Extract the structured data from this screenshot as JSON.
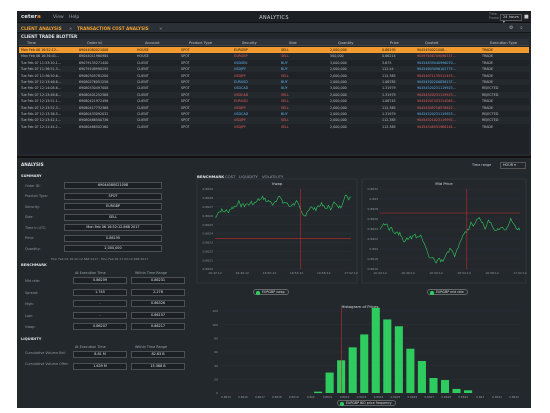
{
  "app": {
    "brand_a": "ceter",
    "brand_b": "a",
    "title": "ANALYTICS",
    "menus": [
      "View",
      "Help"
    ],
    "tz_label": "Time Frame",
    "hours": "24 hours"
  },
  "tabs": [
    "CLIENT ANALYSIS",
    "TRANSACTION COST ANALYSIS"
  ],
  "blotter": {
    "title": "CLIENT TRADE BLOTTER",
    "columns": [
      "Time",
      "Order Id",
      "Account",
      "Product Type",
      "Security",
      "Side",
      "Quantity",
      "Price",
      "Quotelt",
      "Execution Type"
    ],
    "rows": [
      [
        "Mon Feb 06 16:52:12...",
        "69044080021008",
        "HOUSE",
        "SPOT",
        "EURGBP",
        "SELL",
        "2,000,000",
        "0.86195",
        "9045450021008...",
        "TRADE"
      ],
      [
        "Mon Feb 06 16:36:41...",
        "69044011960984",
        "HOUSE",
        "SPOT",
        "EURGBP",
        "SELL",
        "500,000",
        "0.86214",
        "90497636709096747...",
        "TRADE"
      ],
      [
        "Tue Feb 07 11:33:20.1...",
        "69079135271440",
        "CLIENT",
        "SPOT",
        "USDSEK",
        "BUY",
        "3,000,000",
        "3.675",
        "90454839040996070...",
        "TRADE"
      ],
      [
        "Tue Feb 07 11:36:51.3...",
        "69079108990295",
        "CLIENT",
        "SPOT",
        "USDJPY",
        "BUY",
        "2,000,000",
        "112.44",
        "90454603096102775...",
        "TRADE"
      ],
      [
        "Tue Feb 07 11:36:50.6...",
        "69080305781200",
        "CLIENT",
        "SPOT",
        "USDJPY",
        "SELL",
        "2,000,000",
        "112.385",
        "90454971135511453...",
        "TRADE"
      ],
      [
        "Tue Feb 07 12:13:46.6...",
        "69080276051256",
        "CLIENT",
        "SPOT",
        "EURUSD",
        "BUY",
        "2,000,000",
        "1.06785",
        "90454502200836137...",
        "TRADE"
      ],
      [
        "Tue Feb 07 12:14:08.6...",
        "69080330497008",
        "CLIENT",
        "SPOT",
        "USDCAD",
        "BUY",
        "3,000,000",
        "1.31979",
        "90454520231119923...",
        "REJECTED"
      ],
      [
        "Tue Feb 07 12:13:46.6...",
        "69080401252368",
        "CLIENT",
        "SPOT",
        "USDCAD",
        "SELL",
        "2,000,000",
        "1.31979",
        "90454520231119923...",
        "REJECTED"
      ],
      [
        "Tue Feb 07 12:13:51.1...",
        "69080421972496",
        "CLIENT",
        "SPOT",
        "EURUSD",
        "SELL",
        "2,000,000",
        "1.06745",
        "90454507433314063...",
        "TRADE"
      ],
      [
        "Tue Feb 07 12:13:52.3...",
        "69080417732368",
        "CLIENT",
        "SPOT",
        "USDJPY",
        "SELL",
        "2,000,000",
        "112.385",
        "90454309716578822...",
        "TRADE"
      ],
      [
        "Tue Feb 07 12:13:36.5...",
        "69080433092032",
        "CLIENT",
        "SPOT",
        "USDCAD",
        "BUY",
        "2,000,000",
        "1.31979",
        "90454520231119923...",
        "REJECTED"
      ],
      [
        "Tue Feb 07 12:13:42.1...",
        "69080466500736",
        "CLIENT",
        "SPOT",
        "USDJPY",
        "SELL",
        "2,000,000",
        "112.385",
        "90454521023119992...",
        "REJECTED"
      ],
      [
        "Tue Feb 07 12:11:44.2...",
        "69080466502160",
        "CLIENT",
        "SPOT",
        "USDJPY",
        "SELL",
        "2,000,000",
        "112.385",
        "90454548591966144...",
        "TRADE"
      ]
    ]
  },
  "analysis": {
    "title": "ANALYSIS",
    "time_range_label": "Time range",
    "time_range": "HOUR",
    "summary_title": "SUMMARY",
    "summary": [
      {
        "label": "Order ID:",
        "value": "69044080021008"
      },
      {
        "label": "Product Type:",
        "value": "SPOT"
      },
      {
        "label": "Security:",
        "value": "EURGBP"
      },
      {
        "label": "Side:",
        "value": "SELL"
      },
      {
        "label": "Time in UTC:",
        "value": "Mon Feb 06 16:52:12.868 2017"
      },
      {
        "label": "Price:",
        "value": "0.86195"
      },
      {
        "label": "Quantity:",
        "value": "2,000,000"
      }
    ],
    "window_text": "Mon Feb 06 16:42:12.868 2017 - Mon Feb 06 17:02:12.868 2017",
    "benchmark_title": "BENCHMARK",
    "bench_cols": [
      "At Execution Time",
      "Within Time Range"
    ],
    "benchmark": [
      {
        "label": "Mid rate:",
        "a": "0.86209",
        "b": "0.86231"
      },
      {
        "label": "Spread:",
        "a": "1.745",
        "b": "2.276"
      },
      {
        "label": "High:",
        "a": "-",
        "b": "0.86326"
      },
      {
        "label": "Low:",
        "a": "-",
        "b": "0.86157"
      },
      {
        "label": "Vwap:",
        "a": "0.86207",
        "b": "0.86217"
      }
    ],
    "liquidity_title": "LIQUIDITY",
    "liq_cols": [
      "At Execution Time",
      "Within Time Range"
    ],
    "liquidity": [
      {
        "label": "Cumulative Volume Bid:",
        "a": "8.81 M",
        "b": "82.63 B"
      },
      {
        "label": "Cumulative Volume Offer:",
        "a": "1.639 M",
        "b": "15.368 B"
      }
    ]
  },
  "right_tabs": [
    "BENCHMARK",
    "COST",
    "LIQUIDITY",
    "VOLATILITY"
  ],
  "charts": {
    "vwap": {
      "title": "Vwap",
      "legend": "EURGBP vwap",
      "yticks": [
        "0.8629",
        "0.8628",
        "0.8627",
        "0.8626",
        "0.8625",
        "0.8624",
        "0.8623",
        "0.8622",
        "0.8621",
        "0.8620"
      ],
      "xticks": [
        "16:42:12",
        "16:46:12",
        "16:50:12",
        "16:54:12",
        "16:58:12",
        "17:02:12"
      ]
    },
    "mid": {
      "title": "Mid Price",
      "legend": "EURGBP mid rate",
      "yticks": [
        "0.8632",
        "0.863",
        "0.8628",
        "0.8626",
        "0.8624",
        "0.8622",
        "0.862",
        "0.8618",
        "0.8616"
      ],
      "xticks": [
        "16:42:12",
        "16:46:12",
        "16:50:12",
        "16:54:12",
        "16:58:12",
        "17:02:12"
      ]
    },
    "hist": {
      "title": "Histogram of Prices",
      "legend": "EURGBP BID price frequency",
      "yticks": [
        "120",
        "100",
        "80",
        "60",
        "40",
        "20",
        "0"
      ],
      "xticks": [
        "0.8615",
        "0.8616",
        "0.8617",
        "0.8618",
        "0.8619",
        "0.862",
        "0.8621",
        "0.8622",
        "0.8623",
        "0.8624",
        "0.8625",
        "0.8626",
        "0.8627",
        "0.8628",
        "0.8629",
        "0.863",
        "0.8631",
        "0.8632"
      ]
    }
  },
  "chart_data": {
    "type": "bar",
    "title": "Histogram of Prices",
    "series": [
      {
        "name": "EURGBP BID price frequency",
        "values": [
          0,
          0,
          0,
          0,
          0,
          0,
          0,
          0,
          2,
          30,
          48,
          67,
          86,
          125,
          108,
          98,
          65,
          47,
          22,
          19,
          6,
          4,
          0,
          0,
          0,
          0
        ]
      }
    ],
    "ylim": [
      0,
      130
    ],
    "color": "#2ecc5f"
  }
}
